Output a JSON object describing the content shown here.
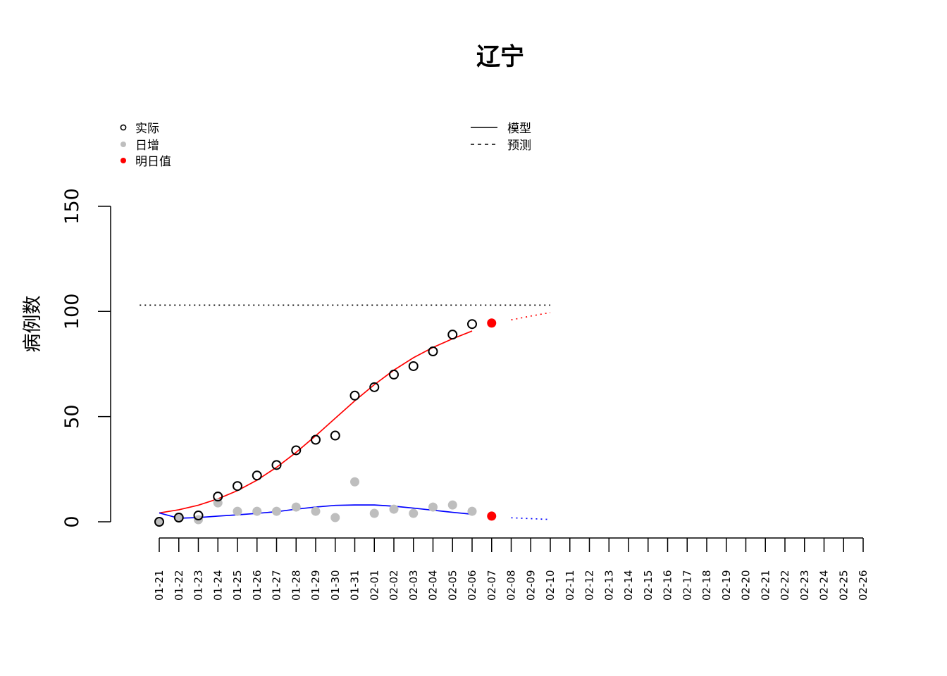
{
  "chart_data": {
    "type": "line",
    "title": "辽宁",
    "ylabel": "病例数",
    "xlabel": "",
    "ylim": [
      0,
      150
    ],
    "yticks": [
      0,
      50,
      100,
      150
    ],
    "categories": [
      "01-21",
      "01-22",
      "01-23",
      "01-24",
      "01-25",
      "01-26",
      "01-27",
      "01-28",
      "01-29",
      "01-30",
      "01-31",
      "02-01",
      "02-02",
      "02-03",
      "02-04",
      "02-05",
      "02-06",
      "02-07",
      "02-08",
      "02-09",
      "02-10",
      "02-11",
      "02-12",
      "02-13",
      "02-14",
      "02-15",
      "02-16",
      "02-17",
      "02-18",
      "02-19",
      "02-20",
      "02-21",
      "02-22",
      "02-23",
      "02-24",
      "02-25",
      "02-26"
    ],
    "legend_points": [
      {
        "label": "实际",
        "marker": "open-circle",
        "color": "#000000"
      },
      {
        "label": "日增",
        "marker": "filled-circle",
        "color": "#bebebe"
      },
      {
        "label": "明日值",
        "marker": "filled-circle",
        "color": "#ff0000"
      }
    ],
    "legend_lines": [
      {
        "label": "模型",
        "style": "solid"
      },
      {
        "label": "预测",
        "style": "dashed"
      }
    ],
    "actual": {
      "x_start": "01-21",
      "values": [
        0,
        2,
        3,
        12,
        17,
        22,
        27,
        34,
        39,
        41,
        60,
        64,
        70,
        74,
        81,
        89,
        94
      ]
    },
    "daily": {
      "x_start": "01-21",
      "values": [
        0,
        2,
        1,
        9,
        5,
        5,
        5,
        7,
        5,
        2,
        19,
        4,
        6,
        4,
        7,
        8,
        5
      ]
    },
    "next_day": [
      {
        "x": "02-07",
        "y": 94.5,
        "series": "cumulative"
      },
      {
        "x": "02-07",
        "y": 2.7,
        "series": "daily"
      }
    ],
    "model_cumulative": {
      "x_start": "01-21",
      "color": "#ff0000",
      "values": [
        4.2,
        5.7,
        7.9,
        10.9,
        14.8,
        19.8,
        25.9,
        33.0,
        40.9,
        49.2,
        57.5,
        65.2,
        72.1,
        78.0,
        82.9,
        87.0,
        90.7
      ]
    },
    "forecast_cumulative": {
      "x": [
        "02-08",
        "02-09",
        "02-10"
      ],
      "color": "#ff0000",
      "values": [
        96.0,
        97.8,
        99.5
      ]
    },
    "model_daily": {
      "x_start": "01-21",
      "color": "#0000ff",
      "values": [
        4.2,
        1.7,
        2.0,
        2.7,
        3.3,
        4.0,
        4.8,
        6.0,
        7.0,
        7.8,
        8.0,
        8.0,
        7.4,
        6.5,
        5.5,
        4.5,
        3.6
      ]
    },
    "forecast_daily": {
      "x": [
        "02-08",
        "02-09",
        "02-10"
      ],
      "color": "#0000ff",
      "values": [
        1.9,
        1.5,
        1.1
      ]
    },
    "reference_line": {
      "y": 103,
      "style": "dotted",
      "color": "#000000",
      "x_from": "01-20",
      "x_to": "02-10"
    }
  }
}
